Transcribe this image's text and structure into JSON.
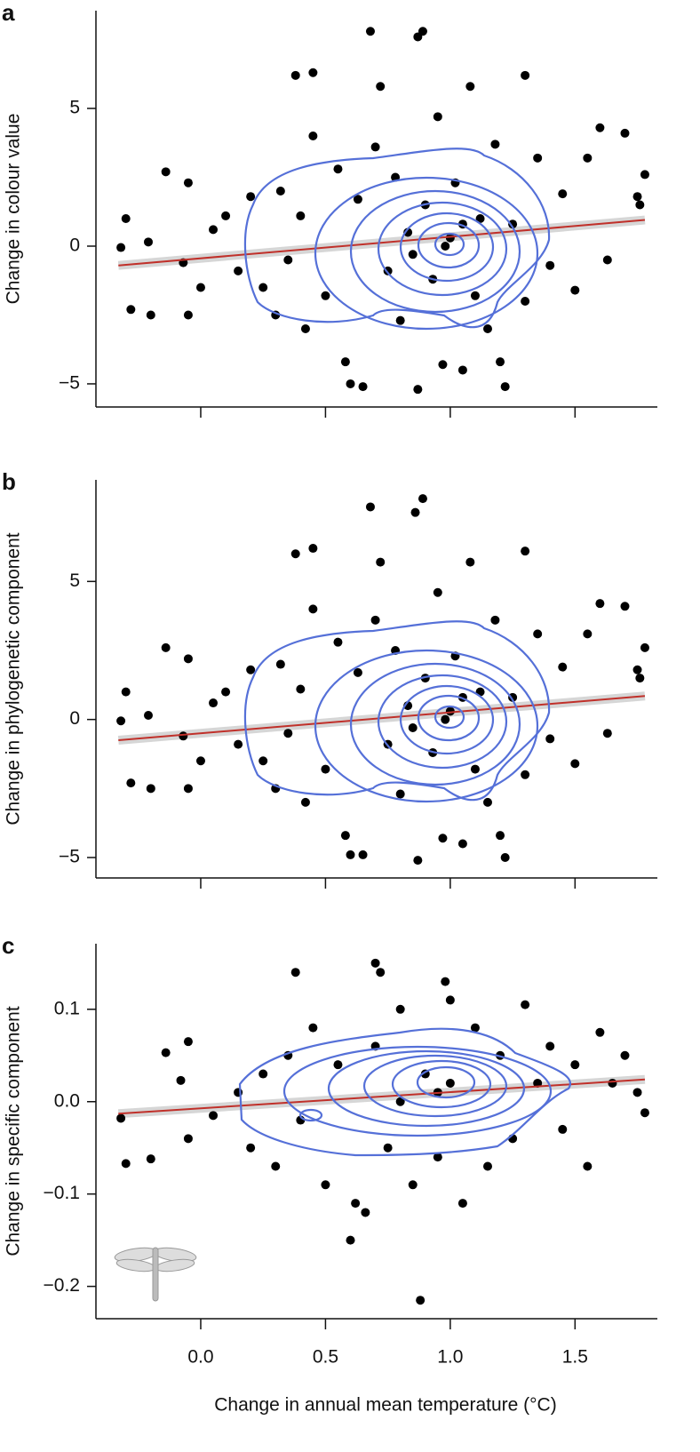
{
  "chart_data": [
    {
      "type": "scatter",
      "label": "a",
      "ylabel": "Change in colour value",
      "color": "#000000",
      "xlim": [
        -0.42,
        1.83
      ],
      "ylim": [
        -5.84,
        8.55
      ],
      "xticks": [
        0,
        0.5,
        1,
        1.5
      ],
      "yticks": [
        5,
        0,
        {
          "value": -5,
          "label": "−5"
        }
      ],
      "x": [
        0.68,
        0.87,
        0.89,
        0.38,
        0.45,
        1.3,
        -0.32,
        -0.3,
        -0.28,
        -0.21,
        -0.2,
        -0.14,
        -0.07,
        -0.05,
        -0.05,
        0.0,
        0.05,
        0.1,
        0.15,
        0.2,
        0.25,
        0.3,
        0.32,
        0.35,
        0.4,
        0.42,
        0.45,
        0.5,
        0.55,
        0.58,
        0.6,
        0.63,
        0.65,
        0.7,
        0.72,
        0.75,
        0.78,
        0.8,
        0.83,
        0.87,
        0.9,
        0.93,
        0.95,
        0.97,
        1.0,
        1.02,
        1.05,
        1.08,
        1.1,
        1.12,
        1.15,
        1.18,
        1.2,
        1.22,
        1.25,
        1.3,
        1.35,
        1.4,
        1.45,
        1.5,
        1.55,
        1.6,
        1.63,
        1.7,
        1.75,
        1.78,
        1.76,
        0.98,
        0.85,
        1.05
      ],
      "values": [
        7.8,
        7.6,
        7.8,
        6.2,
        6.3,
        6.2,
        -0.05,
        1.0,
        -2.3,
        0.15,
        -2.5,
        2.7,
        -0.6,
        2.3,
        -2.5,
        -1.5,
        0.6,
        1.1,
        -0.9,
        1.8,
        -1.5,
        -2.5,
        2.0,
        -0.5,
        1.1,
        -3.0,
        4.0,
        -1.8,
        2.8,
        -4.2,
        -5.0,
        1.7,
        -5.1,
        3.6,
        5.8,
        -0.9,
        2.5,
        -2.7,
        0.5,
        -5.2,
        1.5,
        -1.2,
        4.7,
        -4.3,
        0.3,
        2.3,
        -4.5,
        5.8,
        -1.8,
        1.0,
        -3.0,
        3.7,
        -4.2,
        -5.1,
        0.8,
        -2.0,
        3.2,
        -0.7,
        1.9,
        -1.6,
        3.2,
        4.3,
        -0.5,
        4.1,
        1.8,
        2.6,
        1.5,
        0.0,
        -0.3,
        0.8
      ],
      "fit_x": [
        -0.33,
        1.78
      ],
      "fit_y": [
        -0.7,
        0.95
      ],
      "fit_color": "#c0302a"
    },
    {
      "type": "scatter",
      "label": "b",
      "ylabel": "Change in phylogenetic component",
      "color": "#000000",
      "xlim": [
        -0.42,
        1.83
      ],
      "ylim": [
        -5.74,
        8.68
      ],
      "xticks": [
        0,
        0.5,
        1,
        1.5
      ],
      "yticks": [
        5,
        0,
        {
          "value": -5,
          "label": "−5"
        }
      ],
      "x": [
        0.68,
        0.86,
        0.89,
        0.38,
        0.45,
        1.3,
        -0.32,
        -0.3,
        -0.28,
        -0.21,
        -0.2,
        -0.14,
        -0.07,
        -0.05,
        -0.05,
        0.0,
        0.05,
        0.1,
        0.15,
        0.2,
        0.25,
        0.3,
        0.32,
        0.35,
        0.4,
        0.42,
        0.45,
        0.5,
        0.55,
        0.58,
        0.6,
        0.63,
        0.65,
        0.7,
        0.72,
        0.75,
        0.78,
        0.8,
        0.83,
        0.87,
        0.9,
        0.93,
        0.95,
        0.97,
        1.0,
        1.02,
        1.05,
        1.08,
        1.1,
        1.12,
        1.15,
        1.18,
        1.2,
        1.22,
        1.25,
        1.3,
        1.35,
        1.4,
        1.45,
        1.5,
        1.55,
        1.6,
        1.63,
        1.7,
        1.75,
        1.78,
        1.76,
        0.98,
        0.85,
        1.05
      ],
      "values": [
        7.7,
        7.5,
        8.0,
        6.0,
        6.2,
        6.1,
        -0.05,
        1.0,
        -2.3,
        0.15,
        -2.5,
        2.6,
        -0.6,
        2.2,
        -2.5,
        -1.5,
        0.6,
        1.0,
        -0.9,
        1.8,
        -1.5,
        -2.5,
        2.0,
        -0.5,
        1.1,
        -3.0,
        4.0,
        -1.8,
        2.8,
        -4.2,
        -4.9,
        1.7,
        -4.9,
        3.6,
        5.7,
        -0.9,
        2.5,
        -2.7,
        0.5,
        -5.1,
        1.5,
        -1.2,
        4.6,
        -4.3,
        0.3,
        2.3,
        -4.5,
        5.7,
        -1.8,
        1.0,
        -3.0,
        3.6,
        -4.2,
        -5.0,
        0.8,
        -2.0,
        3.1,
        -0.7,
        1.9,
        -1.6,
        3.1,
        4.2,
        -0.5,
        4.1,
        1.8,
        2.6,
        1.5,
        0.0,
        -0.3,
        0.8
      ],
      "fit_x": [
        -0.33,
        1.78
      ],
      "fit_y": [
        -0.75,
        0.85
      ],
      "fit_color": "#c0302a"
    },
    {
      "type": "scatter",
      "label": "c",
      "ylabel": "Change in specific component",
      "xlabel": "Change in annual mean temperature (°C)",
      "color": "#000000",
      "xlim": [
        -0.42,
        1.83
      ],
      "ylim": [
        -0.235,
        0.171
      ],
      "xticks": [
        {
          "value": 0,
          "label": "0.0"
        },
        0.5,
        {
          "value": 1,
          "label": "1.0"
        },
        1.5
      ],
      "yticks": [
        0.1,
        {
          "value": 0,
          "label": "0.0"
        },
        {
          "value": -0.1,
          "label": "−0.1"
        },
        {
          "value": -0.2,
          "label": "−0.2"
        }
      ],
      "x": [
        0.7,
        0.72,
        0.38,
        0.98,
        -0.14,
        -0.05,
        -0.08,
        -0.32,
        -0.3,
        -0.2,
        -0.05,
        0.05,
        0.15,
        0.2,
        0.25,
        0.3,
        0.35,
        0.4,
        0.45,
        0.5,
        0.55,
        0.6,
        0.62,
        0.66,
        0.7,
        0.75,
        0.8,
        0.85,
        0.88,
        0.9,
        0.95,
        1.0,
        1.05,
        1.1,
        1.15,
        1.2,
        1.25,
        1.3,
        1.35,
        1.4,
        1.45,
        1.5,
        1.55,
        1.6,
        1.65,
        1.7,
        1.78,
        1.75,
        0.95,
        1.0,
        0.8
      ],
      "values": [
        0.15,
        0.14,
        0.14,
        0.13,
        0.053,
        0.065,
        0.023,
        -0.018,
        -0.067,
        -0.062,
        -0.04,
        -0.015,
        0.01,
        -0.05,
        0.03,
        -0.07,
        0.05,
        -0.02,
        0.08,
        -0.09,
        0.04,
        -0.15,
        -0.11,
        -0.12,
        0.06,
        -0.05,
        0.1,
        -0.09,
        -0.215,
        0.03,
        -0.06,
        0.11,
        -0.11,
        0.08,
        -0.07,
        0.05,
        -0.04,
        0.105,
        0.02,
        0.06,
        -0.03,
        0.04,
        -0.07,
        0.075,
        0.02,
        0.05,
        -0.012,
        0.01,
        0.01,
        0.02,
        0.0
      ],
      "fit_x": [
        -0.33,
        1.78
      ],
      "fit_y": [
        -0.013,
        0.024
      ],
      "fit_color": "#c0302a"
    }
  ]
}
